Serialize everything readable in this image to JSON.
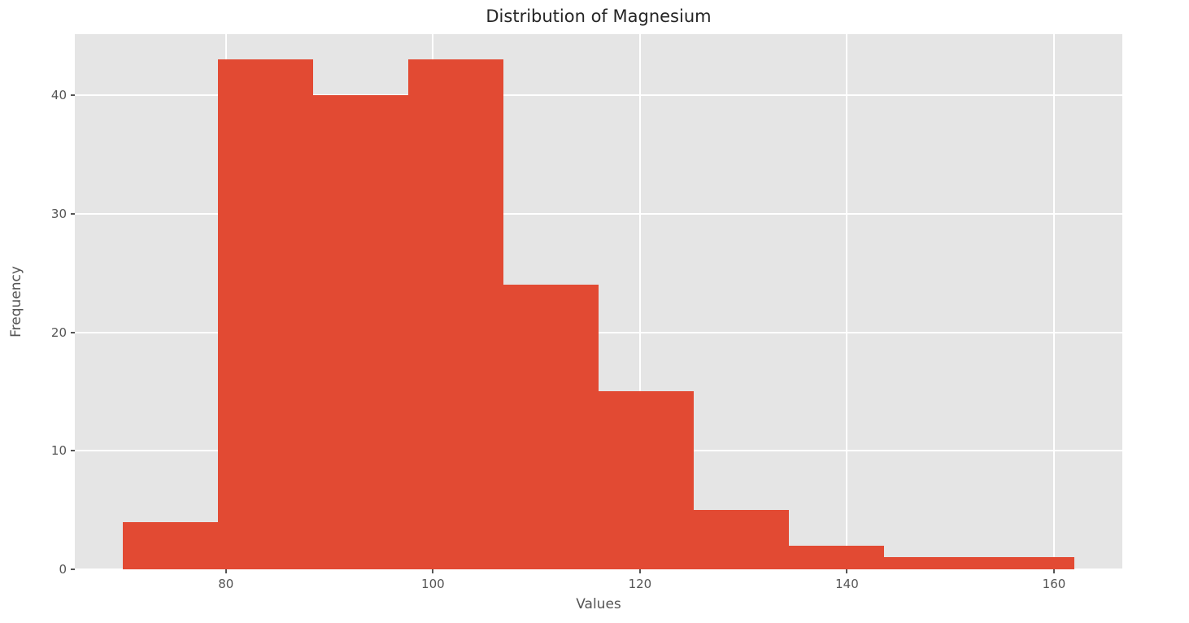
{
  "chart_data": {
    "type": "bar",
    "kind": "histogram",
    "title": "Distribution of Magnesium",
    "xlabel": "Values",
    "ylabel": "Frequency",
    "bin_edges": [
      70,
      79.2,
      88.4,
      97.6,
      106.8,
      116.0,
      125.2,
      134.4,
      143.6,
      152.8,
      162.0
    ],
    "counts": [
      4,
      43,
      40,
      43,
      24,
      15,
      5,
      2,
      1,
      1
    ],
    "xlim": [
      65.4,
      166.6
    ],
    "ylim": [
      0,
      45.15
    ],
    "x_ticks": [
      80,
      100,
      120,
      140,
      160
    ],
    "y_ticks": [
      0,
      10,
      20,
      30,
      40
    ],
    "grid": true,
    "legend": "none",
    "bar_color": "#E24A33",
    "plot_bg_color": "#E5E5E5",
    "grid_color": "#FFFFFF",
    "tick_color": "#555555",
    "label_color": "#555555",
    "title_color": "#262626",
    "figure_bg_color": "#FFFFFF"
  }
}
